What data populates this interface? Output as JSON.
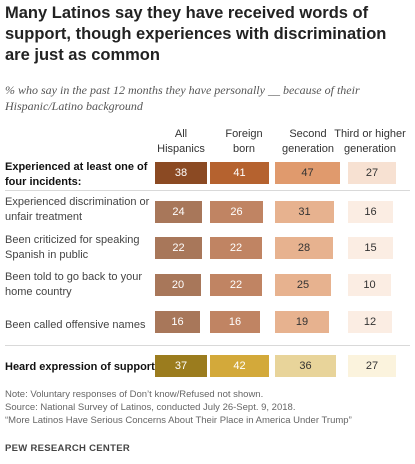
{
  "title": "Many Latinos say they have received words of support, though experiences with discrimination are just as common",
  "subtitle": "% who say in the past 12 months they have personally __ because of their Hispanic/Latino background",
  "columns": [
    "All\nHispanics",
    "Foreign\nborn",
    "Second\ngeneration",
    "Third or higher\ngeneration"
  ],
  "rows": [
    {
      "label": "Experienced at least one of four incidents:",
      "bold": true,
      "values": [
        38,
        41,
        47,
        27
      ],
      "colors": [
        "#8B4A23",
        "#B5622F",
        "#E09A6D",
        "#F7E1D2"
      ],
      "text_colors": [
        "#ffffff",
        "#ffffff",
        "#333333",
        "#333333"
      ]
    },
    {
      "label": "Experienced discrimination or unfair treatment",
      "bold": false,
      "values": [
        24,
        26,
        31,
        16
      ],
      "colors": [
        "#A8775A",
        "#C08463",
        "#E7B28F",
        "#FBEDE3"
      ],
      "text_colors": [
        "#ffffff",
        "#ffffff",
        "#333333",
        "#333333"
      ]
    },
    {
      "label": "Been criticized for speaking Spanish in public",
      "bold": false,
      "values": [
        22,
        22,
        28,
        15
      ],
      "colors": [
        "#A8775A",
        "#C08463",
        "#E7B28F",
        "#FBEDE3"
      ],
      "text_colors": [
        "#ffffff",
        "#ffffff",
        "#333333",
        "#333333"
      ]
    },
    {
      "label": "Been told to go back to your home country",
      "bold": false,
      "values": [
        20,
        22,
        25,
        10
      ],
      "colors": [
        "#A8775A",
        "#C08463",
        "#E7B28F",
        "#FBEDE3"
      ],
      "text_colors": [
        "#ffffff",
        "#ffffff",
        "#333333",
        "#333333"
      ]
    },
    {
      "label": "Been called offensive names",
      "bold": false,
      "values": [
        16,
        16,
        19,
        12
      ],
      "colors": [
        "#A8775A",
        "#C08463",
        "#E7B28F",
        "#FBEDE3"
      ],
      "text_colors": [
        "#ffffff",
        "#ffffff",
        "#333333",
        "#333333"
      ]
    },
    {
      "label": "Heard expression of support",
      "bold": true,
      "values": [
        37,
        42,
        36,
        27
      ],
      "colors": [
        "#9B7C1E",
        "#D3A93A",
        "#E8D49A",
        "#FBF3DD"
      ],
      "text_colors": [
        "#ffffff",
        "#ffffff",
        "#333333",
        "#333333"
      ]
    }
  ],
  "notes": [
    "Note: Voluntary responses of Don’t know/Refused not shown.",
    "Source: National Survey of Latinos, conducted July 26-Sept. 9, 2018.",
    "“More Latinos Have Serious Concerns About Their Place in America Under Trump”"
  ],
  "brand": "PEW RESEARCH CENTER",
  "chart_data": {
    "type": "table",
    "categories": [
      "Experienced at least one of four incidents:",
      "Experienced discrimination or unfair treatment",
      "Been criticized for speaking Spanish in public",
      "Been told to go back to your home country",
      "Been called offensive names",
      "Heard expression of support"
    ],
    "series": [
      {
        "name": "All Hispanics",
        "values": [
          38,
          24,
          22,
          20,
          16,
          37
        ]
      },
      {
        "name": "Foreign born",
        "values": [
          41,
          26,
          22,
          22,
          16,
          42
        ]
      },
      {
        "name": "Second generation",
        "values": [
          47,
          31,
          28,
          25,
          19,
          36
        ]
      },
      {
        "name": "Third or higher generation",
        "values": [
          27,
          16,
          15,
          10,
          12,
          27
        ]
      }
    ],
    "title": "Many Latinos say they have received words of support, though experiences with discrimination are just as common",
    "subtitle": "% who say in the past 12 months they have personally __ because of their Hispanic/Latino background"
  }
}
